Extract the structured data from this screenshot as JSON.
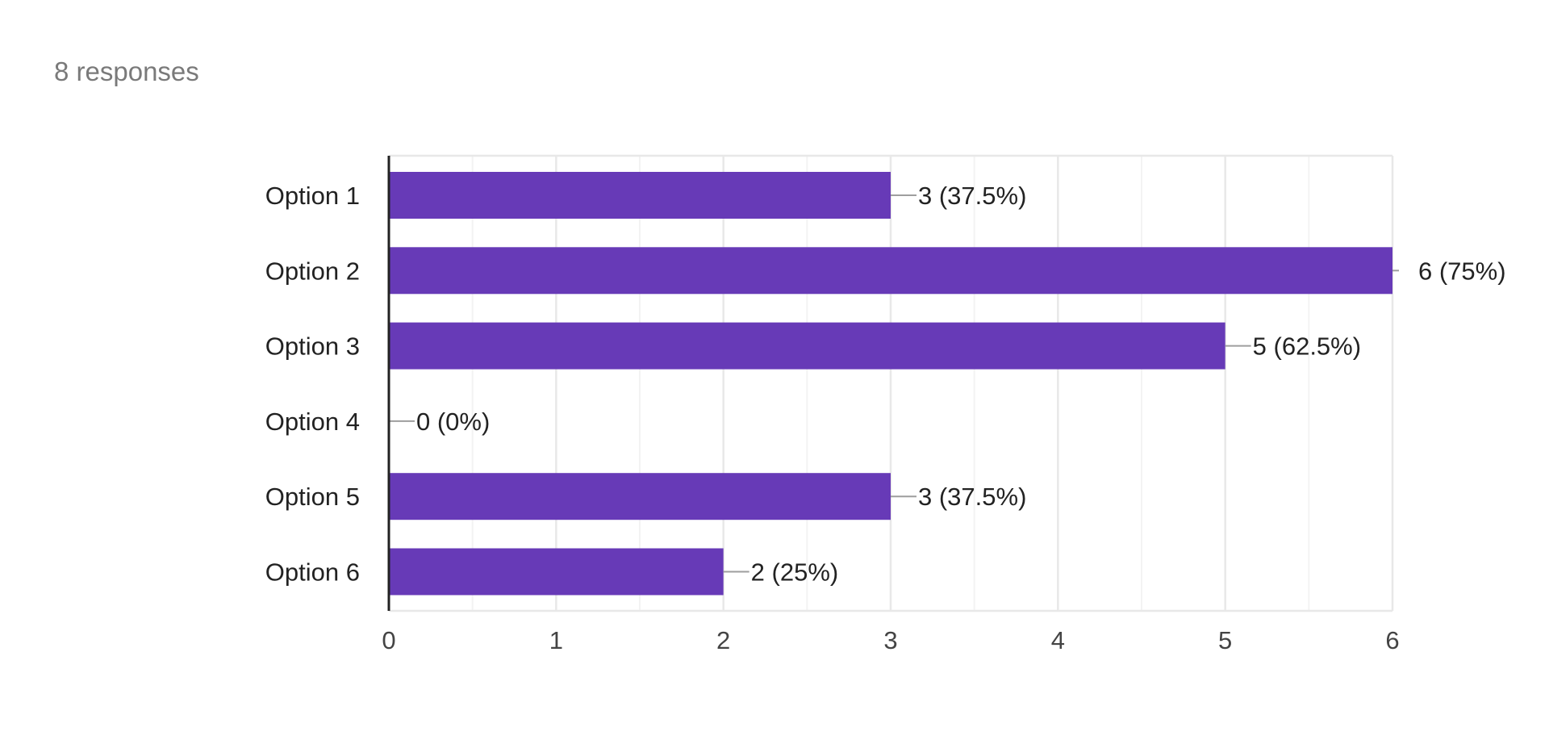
{
  "response_count": "8 responses",
  "colors": {
    "bar": "#673ab7",
    "gridline": "#e8e8e8",
    "minor_gridline": "#f3f3f3",
    "axis": "#222222",
    "leader": "#9e9e9e"
  },
  "chart_data": {
    "type": "bar",
    "orientation": "horizontal",
    "categories": [
      "Option 1",
      "Option 2",
      "Option 3",
      "Option 4",
      "Option 5",
      "Option 6"
    ],
    "values": [
      3,
      6,
      5,
      0,
      3,
      2
    ],
    "data_labels": [
      "3 (37.5%)",
      "6 (75%)",
      "5 (62.5%)",
      "0 (0%)",
      "3 (37.5%)",
      "2 (25%)"
    ],
    "xlim": [
      0,
      6
    ],
    "xticks": [
      "0",
      "1",
      "2",
      "3",
      "4",
      "5",
      "6"
    ],
    "grid": true
  }
}
